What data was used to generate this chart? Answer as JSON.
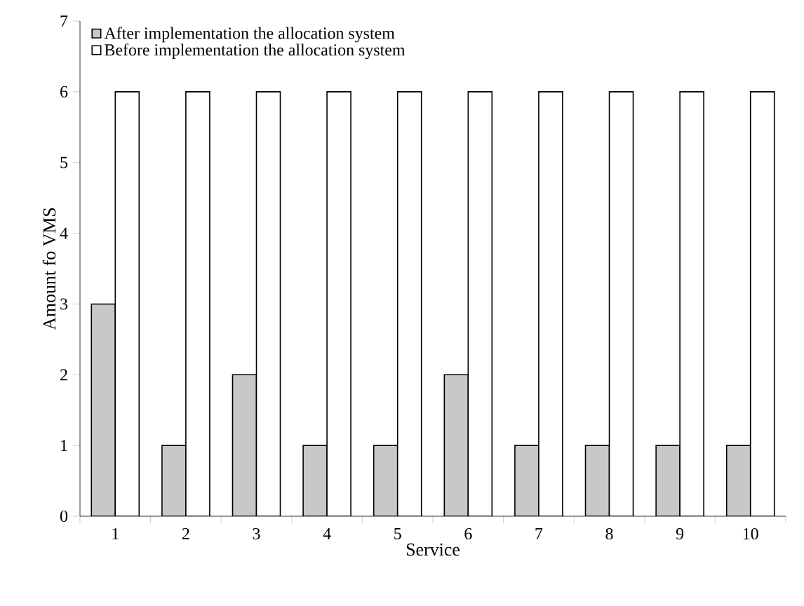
{
  "chart_data": {
    "type": "bar",
    "xlabel": "Service",
    "ylabel": "Amount fo VMS",
    "categories": [
      "1",
      "2",
      "3",
      "4",
      "5",
      "6",
      "7",
      "8",
      "9",
      "10"
    ],
    "series": [
      {
        "name": "After implementation the allocation system",
        "color": "#c8c8c8",
        "values": [
          3,
          1,
          2,
          1,
          1,
          2,
          1,
          1,
          1,
          1
        ]
      },
      {
        "name": "Before implementation the allocation system",
        "color": "#ffffff",
        "values": [
          6,
          6,
          6,
          6,
          6,
          6,
          6,
          6,
          6,
          6
        ]
      }
    ],
    "ylim": [
      0,
      7
    ],
    "yticks": [
      0,
      1,
      2,
      3,
      4,
      5,
      6,
      7
    ],
    "grid": false,
    "legend": "top left"
  }
}
